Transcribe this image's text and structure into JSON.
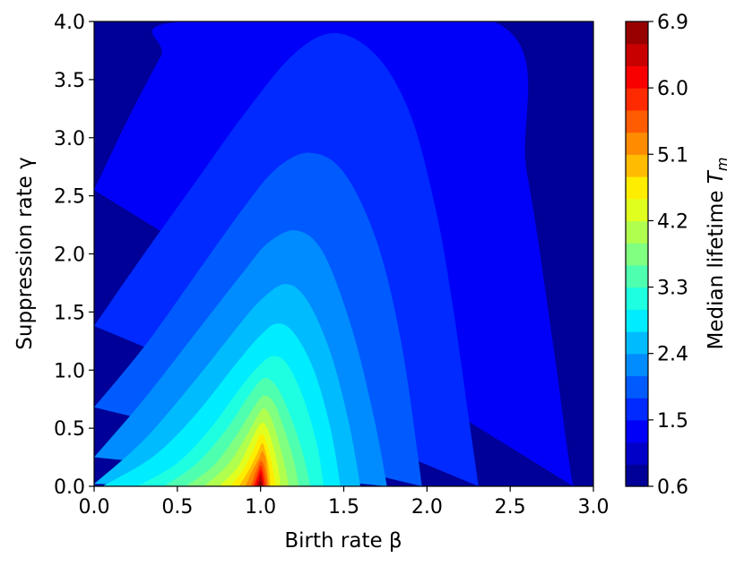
{
  "chart_data": {
    "type": "heatmap",
    "subtype": "filled-contour",
    "colormap": "jet",
    "title": "",
    "xlabel": "Birth rate β",
    "ylabel": "Suppression rate γ",
    "xlim": [
      0.0,
      3.0
    ],
    "ylim": [
      0.0,
      4.0
    ],
    "x_ticks": [
      "0.0",
      "0.5",
      "1.0",
      "1.5",
      "2.0",
      "2.5",
      "3.0"
    ],
    "y_ticks": [
      "0.0",
      "0.5",
      "1.0",
      "1.5",
      "2.0",
      "2.5",
      "3.0",
      "3.5",
      "4.0"
    ],
    "colorbar": {
      "label": "Median lifetime T_m",
      "label_main": "Median lifetime ",
      "label_symbol": "T",
      "label_subscript": "m",
      "range": [
        0.6,
        6.9
      ],
      "levels": 21,
      "ticks": [
        "0.6",
        "1.5",
        "2.4",
        "3.3",
        "4.2",
        "5.1",
        "6.0",
        "6.9"
      ]
    },
    "peak": {
      "x": 1.0,
      "y": 0.0,
      "value": 6.9
    },
    "contours": [
      {
        "level": 1.2,
        "points": [
          [
            0.0,
            2.55
          ],
          [
            0.2,
            3.15
          ],
          [
            0.4,
            3.7
          ],
          [
            0.52,
            4.0
          ],
          [
            2.4,
            4.0
          ],
          [
            2.6,
            2.7
          ],
          [
            2.75,
            1.3
          ],
          [
            2.85,
            0.25
          ],
          [
            2.88,
            0.0
          ]
        ]
      },
      {
        "level": 1.5,
        "points": [
          [
            0.0,
            1.38
          ],
          [
            0.3,
            2.0
          ],
          [
            0.6,
            2.6
          ],
          [
            0.9,
            3.2
          ],
          [
            1.2,
            3.72
          ],
          [
            1.45,
            3.9
          ],
          [
            1.7,
            3.7
          ],
          [
            1.9,
            3.2
          ],
          [
            2.05,
            2.4
          ],
          [
            2.15,
            1.6
          ],
          [
            2.25,
            0.6
          ],
          [
            2.31,
            0.0
          ]
        ]
      },
      {
        "level": 1.8,
        "points": [
          [
            0.0,
            0.68
          ],
          [
            0.3,
            1.2
          ],
          [
            0.6,
            1.8
          ],
          [
            0.9,
            2.4
          ],
          [
            1.1,
            2.74
          ],
          [
            1.3,
            2.87
          ],
          [
            1.5,
            2.7
          ],
          [
            1.7,
            2.1
          ],
          [
            1.85,
            1.2
          ],
          [
            1.97,
            0.0
          ]
        ]
      },
      {
        "level": 2.1,
        "points": [
          [
            0.0,
            0.25
          ],
          [
            0.3,
            0.75
          ],
          [
            0.6,
            1.3
          ],
          [
            0.9,
            1.85
          ],
          [
            1.05,
            2.1
          ],
          [
            1.22,
            2.2
          ],
          [
            1.38,
            2.0
          ],
          [
            1.55,
            1.35
          ],
          [
            1.68,
            0.6
          ],
          [
            1.76,
            0.0
          ]
        ]
      },
      {
        "level": 2.4,
        "points": [
          [
            0.0,
            0.02
          ],
          [
            0.3,
            0.4
          ],
          [
            0.6,
            0.9
          ],
          [
            0.85,
            1.35
          ],
          [
            1.0,
            1.6
          ],
          [
            1.15,
            1.74
          ],
          [
            1.28,
            1.6
          ],
          [
            1.42,
            1.15
          ],
          [
            1.53,
            0.55
          ],
          [
            1.6,
            0.0
          ]
        ]
      },
      {
        "level": 2.7,
        "points": [
          [
            0.05,
            0.0
          ],
          [
            0.35,
            0.25
          ],
          [
            0.6,
            0.6
          ],
          [
            0.85,
            1.05
          ],
          [
            1.0,
            1.3
          ],
          [
            1.1,
            1.4
          ],
          [
            1.2,
            1.32
          ],
          [
            1.32,
            1.0
          ],
          [
            1.42,
            0.5
          ],
          [
            1.48,
            0.0
          ]
        ]
      },
      {
        "level": 3.0,
        "points": [
          [
            0.26,
            0.0
          ],
          [
            0.5,
            0.2
          ],
          [
            0.7,
            0.5
          ],
          [
            0.88,
            0.85
          ],
          [
            1.0,
            1.05
          ],
          [
            1.08,
            1.12
          ],
          [
            1.16,
            1.05
          ],
          [
            1.26,
            0.75
          ],
          [
            1.34,
            0.35
          ],
          [
            1.38,
            0.0
          ]
        ]
      },
      {
        "level": 3.3,
        "points": [
          [
            0.42,
            0.0
          ],
          [
            0.62,
            0.2
          ],
          [
            0.8,
            0.5
          ],
          [
            0.93,
            0.78
          ],
          [
            1.02,
            0.93
          ],
          [
            1.1,
            0.85
          ],
          [
            1.18,
            0.6
          ],
          [
            1.25,
            0.3
          ],
          [
            1.3,
            0.0
          ]
        ]
      },
      {
        "level": 3.6,
        "points": [
          [
            0.55,
            0.0
          ],
          [
            0.72,
            0.18
          ],
          [
            0.86,
            0.45
          ],
          [
            0.96,
            0.68
          ],
          [
            1.02,
            0.78
          ],
          [
            1.08,
            0.72
          ],
          [
            1.14,
            0.5
          ],
          [
            1.2,
            0.22
          ],
          [
            1.23,
            0.0
          ]
        ]
      },
      {
        "level": 3.9,
        "points": [
          [
            0.66,
            0.0
          ],
          [
            0.8,
            0.18
          ],
          [
            0.91,
            0.42
          ],
          [
            0.98,
            0.6
          ],
          [
            1.02,
            0.67
          ],
          [
            1.06,
            0.6
          ],
          [
            1.11,
            0.38
          ],
          [
            1.15,
            0.15
          ],
          [
            1.17,
            0.0
          ]
        ]
      },
      {
        "level": 4.2,
        "points": [
          [
            0.75,
            0.0
          ],
          [
            0.86,
            0.16
          ],
          [
            0.94,
            0.38
          ],
          [
            1.0,
            0.54
          ],
          [
            1.04,
            0.5
          ],
          [
            1.08,
            0.32
          ],
          [
            1.11,
            0.12
          ],
          [
            1.12,
            0.0
          ]
        ]
      },
      {
        "level": 4.5,
        "points": [
          [
            0.82,
            0.0
          ],
          [
            0.9,
            0.15
          ],
          [
            0.96,
            0.32
          ],
          [
            1.0,
            0.45
          ],
          [
            1.03,
            0.4
          ],
          [
            1.06,
            0.25
          ],
          [
            1.08,
            0.1
          ],
          [
            1.09,
            0.0
          ]
        ]
      },
      {
        "level": 4.8,
        "points": [
          [
            0.87,
            0.0
          ],
          [
            0.93,
            0.14
          ],
          [
            0.98,
            0.28
          ],
          [
            1.01,
            0.37
          ],
          [
            1.03,
            0.3
          ],
          [
            1.05,
            0.16
          ],
          [
            1.06,
            0.0
          ]
        ]
      },
      {
        "level": 5.1,
        "points": [
          [
            0.91,
            0.0
          ],
          [
            0.95,
            0.13
          ],
          [
            0.99,
            0.24
          ],
          [
            1.01,
            0.3
          ],
          [
            1.03,
            0.24
          ],
          [
            1.04,
            0.12
          ],
          [
            1.05,
            0.0
          ]
        ]
      },
      {
        "level": 5.4,
        "points": [
          [
            0.94,
            0.0
          ],
          [
            0.97,
            0.12
          ],
          [
            1.0,
            0.22
          ],
          [
            1.02,
            0.18
          ],
          [
            1.035,
            0.08
          ],
          [
            1.04,
            0.0
          ]
        ]
      },
      {
        "level": 5.7,
        "points": [
          [
            0.955,
            0.0
          ],
          [
            0.98,
            0.1
          ],
          [
            1.0,
            0.18
          ],
          [
            1.015,
            0.13
          ],
          [
            1.025,
            0.06
          ],
          [
            1.03,
            0.0
          ]
        ]
      },
      {
        "level": 6.0,
        "points": [
          [
            0.965,
            0.0
          ],
          [
            0.985,
            0.08
          ],
          [
            1.0,
            0.14
          ],
          [
            1.012,
            0.09
          ],
          [
            1.02,
            0.0
          ]
        ]
      },
      {
        "level": 6.3,
        "points": [
          [
            0.975,
            0.0
          ],
          [
            0.99,
            0.06
          ],
          [
            1.0,
            0.1
          ],
          [
            1.008,
            0.06
          ],
          [
            1.015,
            0.0
          ]
        ]
      },
      {
        "level": 6.6,
        "points": [
          [
            0.985,
            0.0
          ],
          [
            1.0,
            0.05
          ],
          [
            1.01,
            0.0
          ]
        ]
      }
    ]
  }
}
